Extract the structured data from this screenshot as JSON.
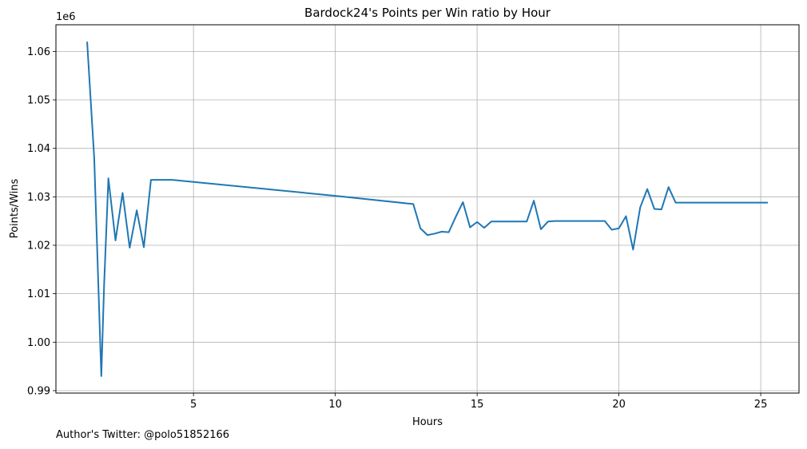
{
  "footer_text": "Author's Twitter: @polo51852166",
  "chart_data": {
    "type": "line",
    "title": "Bardock24's Points per Win ratio by Hour",
    "xlabel": "Hours",
    "ylabel": "Points/Wins",
    "y_offset_label": "1e6",
    "xlim": [
      0.15,
      26.35
    ],
    "ylim": [
      0.9895,
      1.0655
    ],
    "x_ticks": [
      5,
      10,
      15,
      20,
      25
    ],
    "x_tick_labels": [
      "5",
      "10",
      "15",
      "20",
      "25"
    ],
    "y_ticks": [
      0.99,
      1.0,
      1.01,
      1.02,
      1.03,
      1.04,
      1.05,
      1.06
    ],
    "y_tick_labels": [
      "0.99",
      "1.00",
      "1.01",
      "1.02",
      "1.03",
      "1.04",
      "1.05",
      "1.06"
    ],
    "grid": true,
    "line_color": "#1f77b4",
    "series": [
      {
        "x": [
          1.25,
          1.5,
          1.75,
          1.85,
          2.0,
          2.25,
          2.5,
          2.75,
          3.0,
          3.25,
          3.5,
          4.25,
          10.0,
          12.75,
          13.0,
          13.25,
          13.5,
          13.75,
          14.0,
          14.25,
          14.5,
          14.75,
          15.0,
          15.25,
          15.5,
          16.75,
          17.0,
          17.25,
          17.5,
          17.75,
          19.5,
          19.75,
          20.0,
          20.25,
          20.5,
          20.75,
          21.0,
          21.25,
          21.5,
          21.75,
          22.0,
          25.25
        ],
        "y": [
          1.062,
          1.038,
          0.993,
          1.012,
          1.0338,
          1.021,
          1.0308,
          1.0195,
          1.0272,
          1.0196,
          1.0335,
          1.0335,
          1.0302,
          1.0285,
          1.0235,
          1.0221,
          1.0224,
          1.0228,
          1.0227,
          1.0259,
          1.0289,
          1.0237,
          1.0248,
          1.0236,
          1.0249,
          1.0249,
          1.0292,
          1.0233,
          1.0249,
          1.025,
          1.025,
          1.0232,
          1.0235,
          1.026,
          1.0191,
          1.0278,
          1.0316,
          1.0275,
          1.0274,
          1.032,
          1.0288,
          1.0288
        ]
      }
    ]
  }
}
